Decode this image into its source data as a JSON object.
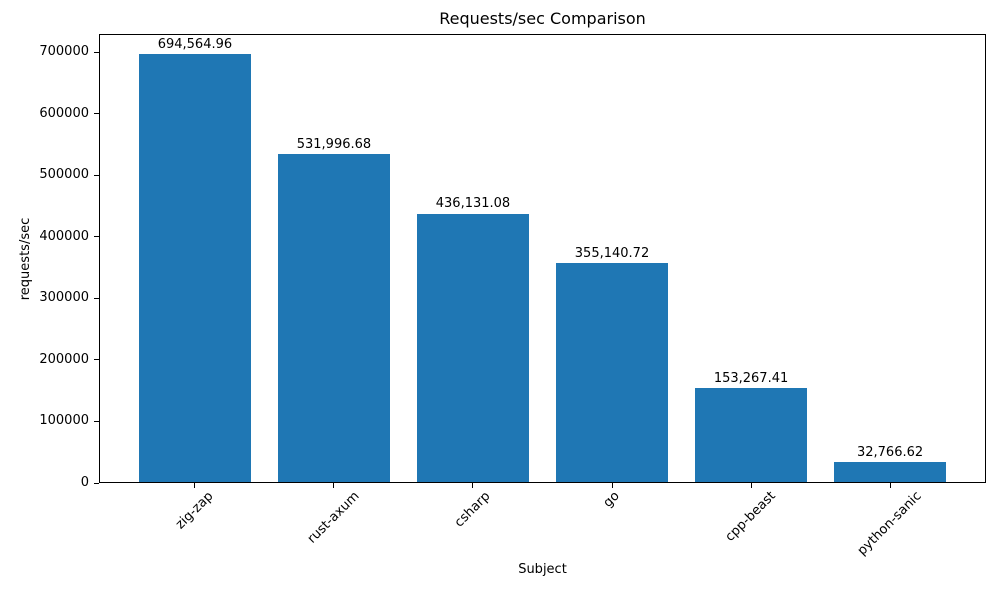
{
  "figure": {
    "background": "#ffffff",
    "text_color": "#000000",
    "axis_color": "#000000"
  },
  "chart_data": {
    "type": "bar",
    "title": "Requests/sec Comparison",
    "xlabel": "Subject",
    "ylabel": "requests/sec",
    "categories": [
      "zig-zap",
      "rust-axum",
      "csharp",
      "go",
      "cpp-beast",
      "python-sanic"
    ],
    "values": [
      694564.96,
      531996.68,
      436131.08,
      355140.72,
      153267.41,
      32766.62
    ],
    "bar_labels": [
      "694,564.96",
      "531,996.68",
      "436,131.08",
      "355,140.72",
      "153,267.41",
      "32,766.62"
    ],
    "y_ticks": [
      0,
      100000,
      200000,
      300000,
      400000,
      500000,
      600000,
      700000
    ],
    "y_tick_labels": [
      "0",
      "100000",
      "200000",
      "300000",
      "400000",
      "500000",
      "600000",
      "700000"
    ],
    "ylim": [
      0,
      729293.21
    ],
    "bar_color": "#1f77b4",
    "grid": false,
    "legend": null,
    "x_tick_rotation_deg": 45
  }
}
